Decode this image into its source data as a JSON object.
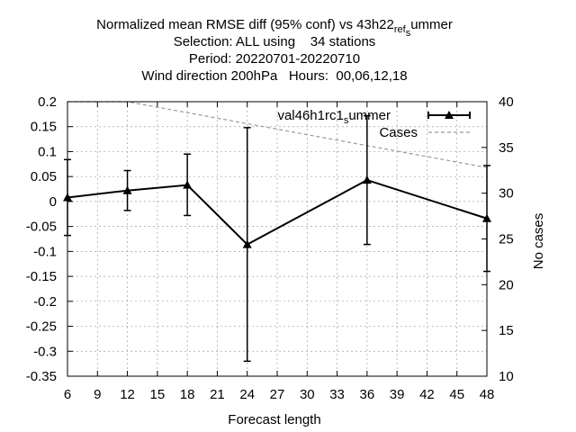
{
  "chart_data": {
    "type": "line",
    "title_lines": [
      "Normalized mean RMSE diff (95% conf) vs 43h22_ref_summer",
      "Selection: ALL using    34 stations",
      "Period: 20220701-20220710",
      "Wind direction 200hPa   Hours:  00,06,12,18"
    ],
    "xlabel": "Forecast length",
    "ylabel": "",
    "y2label": "No cases",
    "xlim": [
      6,
      48
    ],
    "ylim": [
      -0.35,
      0.2
    ],
    "y2lim": [
      10,
      40
    ],
    "xticks": [
      6,
      9,
      12,
      15,
      18,
      21,
      24,
      27,
      30,
      33,
      36,
      39,
      42,
      45,
      48
    ],
    "yticks": [
      -0.35,
      -0.3,
      -0.25,
      -0.2,
      -0.15,
      -0.1,
      -0.05,
      0,
      0.05,
      0.1,
      0.15,
      0.2
    ],
    "ytick_labels": [
      "-0.35",
      "-0.3",
      "-0.25",
      "-0.2",
      "-0.15",
      "-0.1",
      "-0.05",
      "0",
      "0.05",
      "0.1",
      "0.15",
      "0.2"
    ],
    "y2ticks": [
      10,
      15,
      20,
      25,
      30,
      35,
      40
    ],
    "grid": true,
    "legend_position": "top-right",
    "series": [
      {
        "name": "val46h1rc1_summer",
        "axis": "left",
        "style": "line-with-errorbars",
        "color": "#000000",
        "marker": "triangle",
        "x": [
          6,
          12,
          18,
          24,
          36,
          48
        ],
        "y": [
          0.008,
          0.022,
          0.033,
          -0.086,
          0.043,
          -0.034
        ],
        "err_low": [
          -0.068,
          -0.018,
          -0.028,
          -0.32,
          -0.086,
          -0.14
        ],
        "err_high": [
          0.084,
          0.062,
          0.095,
          0.148,
          0.172,
          0.072
        ]
      },
      {
        "name": "Cases",
        "axis": "right",
        "style": "dashed",
        "color": "#999999",
        "x": [
          6,
          7,
          8,
          9,
          10,
          11,
          12,
          13,
          14,
          15,
          16,
          17,
          18,
          19,
          20,
          21,
          22,
          23,
          24,
          25,
          26,
          27,
          28,
          29,
          30,
          31,
          32,
          33,
          34,
          35,
          36,
          37,
          38,
          39,
          40,
          41,
          42,
          43,
          44,
          45,
          46,
          47,
          48
        ],
        "y": [
          40,
          40,
          40,
          40,
          40,
          40,
          40,
          39.8,
          39.6,
          39.4,
          39.2,
          39,
          38.8,
          38.6,
          38.4,
          38.2,
          38,
          37.8,
          37.6,
          37.4,
          37.2,
          37,
          36.8,
          36.6,
          36.4,
          36.2,
          36,
          35.8,
          35.6,
          35.4,
          35.2,
          35,
          34.8,
          34.6,
          34.4,
          34.2,
          34,
          33.8,
          33.6,
          33.4,
          33.2,
          33,
          32.8
        ]
      }
    ]
  }
}
